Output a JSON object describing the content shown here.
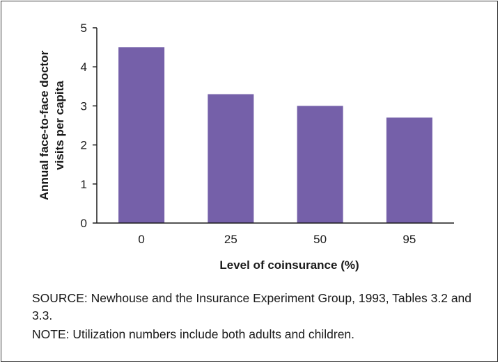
{
  "chart_data": {
    "type": "bar",
    "categories": [
      "0",
      "25",
      "50",
      "95"
    ],
    "values": [
      4.5,
      3.3,
      3.0,
      2.7
    ],
    "xlabel": "Level of coinsurance (%)",
    "ylabel_lines": [
      "Annual face-to-face doctor",
      "visits per capita"
    ],
    "ylim": [
      0,
      5
    ],
    "yticks": [
      "0",
      "1",
      "2",
      "3",
      "4",
      "5"
    ],
    "grid": false,
    "bar_color": "#7560a9"
  },
  "footer": {
    "source": "SOURCE: Newhouse and the Insurance Experiment Group, 1993, Tables 3.2 and 3.3.",
    "note": "NOTE: Utilization numbers include both adults and children."
  }
}
